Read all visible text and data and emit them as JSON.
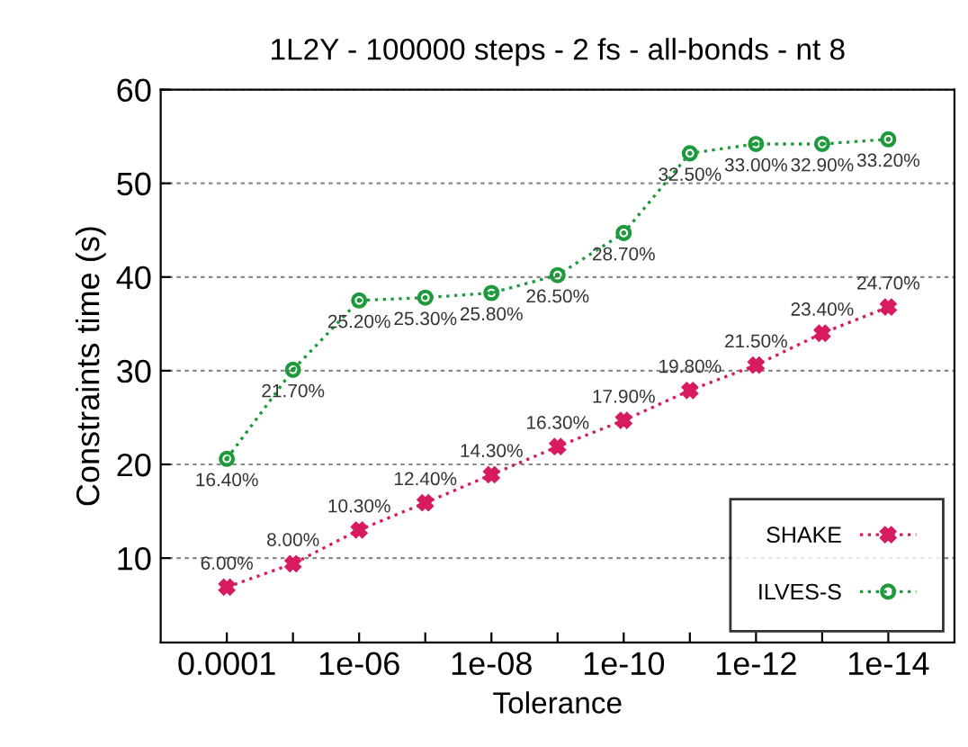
{
  "chart_data": {
    "type": "line",
    "title": "1L2Y - 100000 steps - 2 fs - all-bonds - nt 8",
    "xlabel": "Tolerance",
    "ylabel": "Constraints time (s)",
    "x": [
      0.0001,
      1e-05,
      1e-06,
      1e-07,
      1e-08,
      1e-09,
      1e-10,
      1e-11,
      1e-12,
      1e-13,
      1e-14
    ],
    "series": [
      {
        "name": "SHAKE",
        "color": "#d81b60",
        "marker": "cross",
        "values": [
          6.9,
          9.4,
          13.0,
          15.9,
          18.9,
          21.9,
          24.7,
          27.9,
          30.6,
          34.0,
          36.8
        ]
      },
      {
        "name": "ILVES-S",
        "color": "#1e9a3c",
        "marker": "circle",
        "values": [
          20.6,
          30.1,
          37.5,
          37.8,
          38.3,
          40.2,
          44.7,
          53.2,
          54.2,
          54.2,
          54.7
        ]
      }
    ],
    "log": "x",
    "xlim": [
      0.001,
      1e-15
    ],
    "xticks": [
      {
        "value": 0.0001,
        "label": "0.0001"
      },
      {
        "value": 1e-05,
        "label": null
      },
      {
        "value": 1e-06,
        "label": "1e-06"
      },
      {
        "value": 1e-07,
        "label": null
      },
      {
        "value": 1e-08,
        "label": "1e-08"
      },
      {
        "value": 1e-09,
        "label": null
      },
      {
        "value": 1e-10,
        "label": "1e-10"
      },
      {
        "value": 1e-11,
        "label": null
      },
      {
        "value": 1e-12,
        "label": "1e-12"
      },
      {
        "value": 1e-13,
        "label": null
      },
      {
        "value": 1e-14,
        "label": "1e-14"
      }
    ],
    "ylim": [
      1,
      60
    ],
    "yticks": [
      10,
      20,
      30,
      40,
      50,
      60
    ],
    "grid": "y",
    "legend": "bottom right",
    "line_style": "dotted",
    "annotations": [
      {
        "text": "6.00%",
        "x": 0.0001,
        "y": 6.9
      },
      {
        "text": "8.00%",
        "x": 1e-05,
        "y": 9.4
      },
      {
        "text": "10.30%",
        "x": 1e-06,
        "y": 13.0
      },
      {
        "text": "12.40%",
        "x": 1e-07,
        "y": 15.9
      },
      {
        "text": "14.30%",
        "x": 1e-08,
        "y": 18.9
      },
      {
        "text": "16.30%",
        "x": 1e-09,
        "y": 21.9
      },
      {
        "text": "17.90%",
        "x": 1e-10,
        "y": 24.7
      },
      {
        "text": "19.80%",
        "x": 1e-11,
        "y": 27.9
      },
      {
        "text": "21.50%",
        "x": 1e-12,
        "y": 30.6
      },
      {
        "text": "23.40%",
        "x": 1e-13,
        "y": 34.0
      },
      {
        "text": "24.70%",
        "x": 1e-14,
        "y": 36.8
      },
      {
        "text": "16.40%",
        "x": 0.0001,
        "y": 20.6
      },
      {
        "text": "21.70%",
        "x": 1e-05,
        "y": 30.1
      },
      {
        "text": "25.20%",
        "x": 1e-06,
        "y": 37.5
      },
      {
        "text": "25.30%",
        "x": 1e-07,
        "y": 37.8
      },
      {
        "text": "25.80%",
        "x": 1e-08,
        "y": 38.3
      },
      {
        "text": "26.50%",
        "x": 1e-09,
        "y": 40.2
      },
      {
        "text": "28.70%",
        "x": 1e-10,
        "y": 44.7
      },
      {
        "text": "32.50%",
        "x": 1e-11,
        "y": 53.2
      },
      {
        "text": "33.00%",
        "x": 1e-12,
        "y": 54.2
      },
      {
        "text": "32.90%",
        "x": 1e-13,
        "y": 54.2
      },
      {
        "text": "33.20%",
        "x": 1e-14,
        "y": 54.7
      }
    ]
  }
}
